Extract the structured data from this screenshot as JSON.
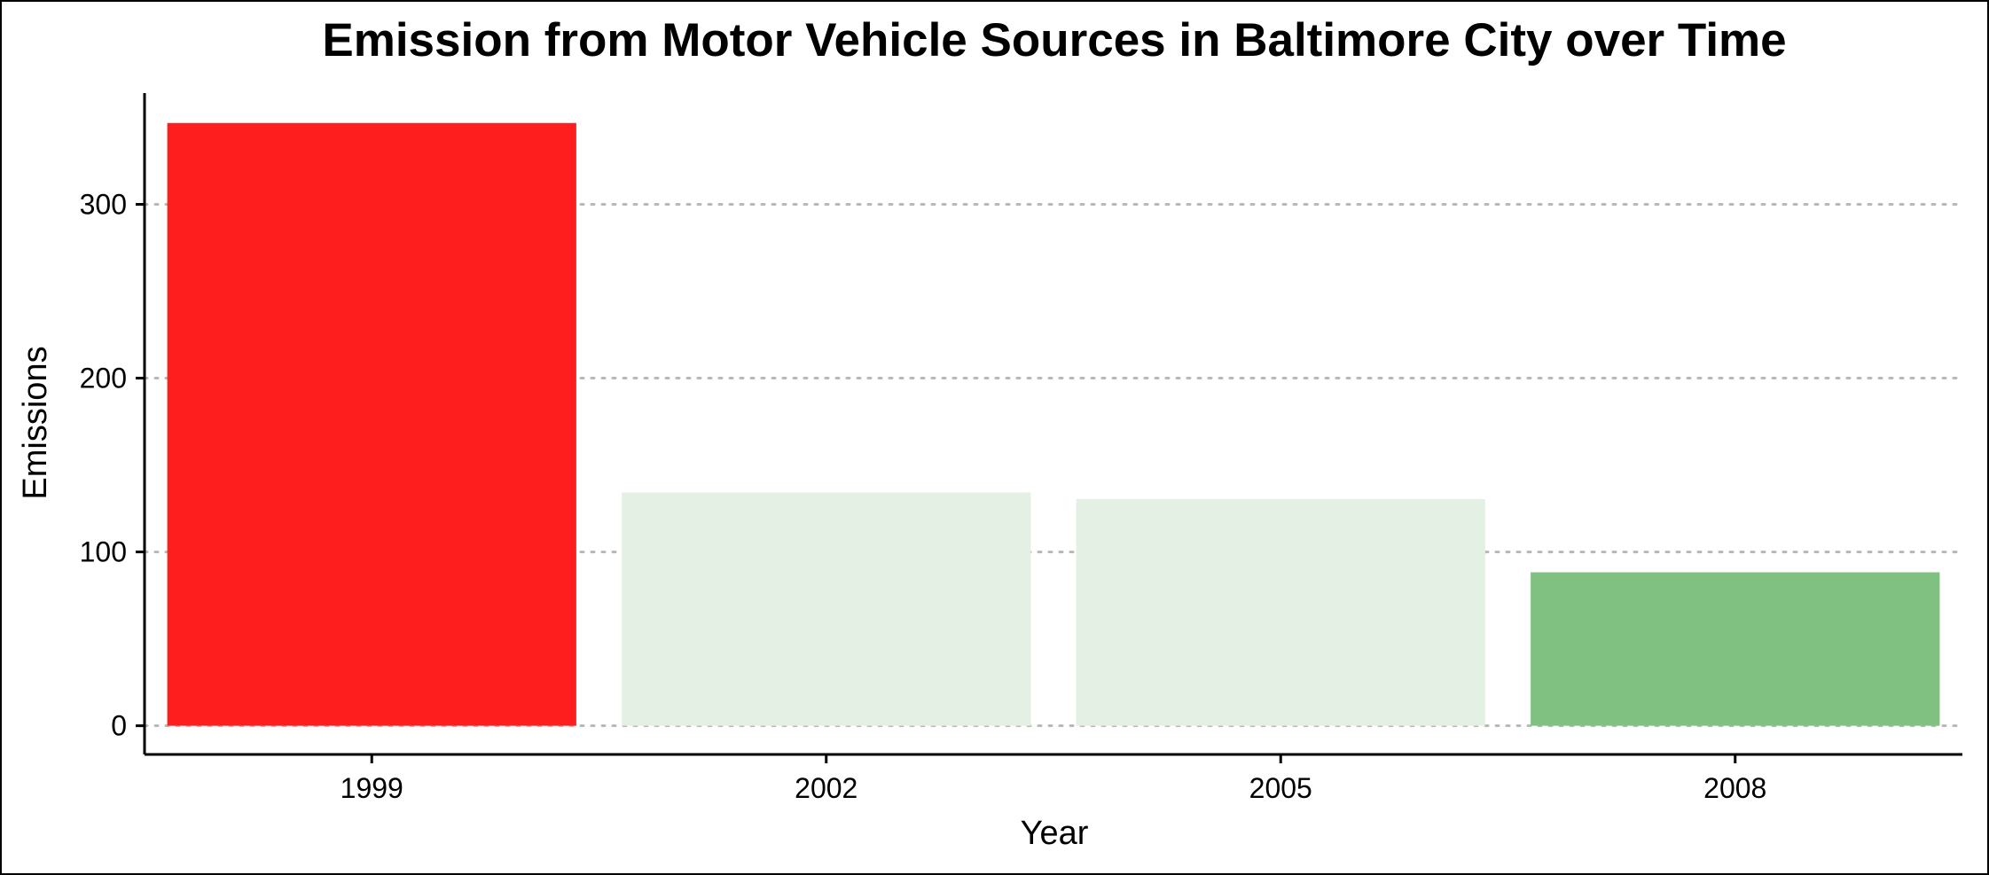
{
  "chart_data": {
    "type": "bar",
    "title": "Emission from Motor Vehicle Sources in Baltimore City over Time",
    "xlabel": "Year",
    "ylabel": "Emissions",
    "categories": [
      "1999",
      "2002",
      "2005",
      "2008"
    ],
    "values": [
      346.8,
      134.3,
      130.4,
      88.3
    ],
    "bar_colors": [
      "#ff1e1e",
      "#e5f0e5",
      "#e5f0e5",
      "#80c080"
    ],
    "yticks": [
      0,
      100,
      200,
      300
    ],
    "ytick_labels": [
      "0",
      "100",
      "200",
      "300"
    ],
    "ylim": [
      -16.5,
      364
    ],
    "grid": "horizontal dotted",
    "legend": "none"
  }
}
